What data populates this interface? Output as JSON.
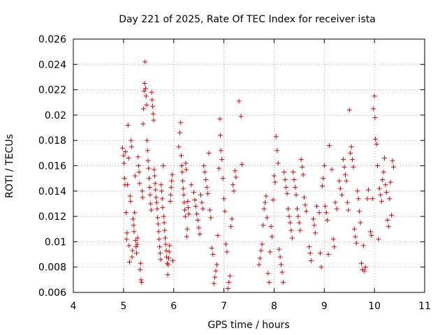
{
  "chart_data": {
    "type": "scatter",
    "title": "Day 221 of 2025, Rate Of TEC Index for receiver ista",
    "xlabel": "GPS time / hours",
    "ylabel": "ROTI / TECUs",
    "xlim": [
      4,
      11
    ],
    "ylim": [
      0.006,
      0.026
    ],
    "x_ticks": [
      "4",
      "5",
      "6",
      "7",
      "8",
      "9",
      "10",
      "11"
    ],
    "y_ticks": [
      "0.006",
      "0.008",
      "0.01",
      "0.012",
      "0.014",
      "0.016",
      "0.018",
      "0.02",
      "0.022",
      "0.024",
      "0.026"
    ],
    "grid": true,
    "marker": "+",
    "marker_color": "#e00000",
    "points": [
      [
        4.98,
        0.0174
      ],
      [
        5.0,
        0.0168
      ],
      [
        5.01,
        0.0162
      ],
      [
        5.02,
        0.015
      ],
      [
        5.03,
        0.0145
      ],
      [
        5.04,
        0.0171
      ],
      [
        5.05,
        0.0123
      ],
      [
        5.06,
        0.0102
      ],
      [
        5.07,
        0.0107
      ],
      [
        5.08,
        0.0145
      ],
      [
        5.09,
        0.0192
      ],
      [
        5.1,
        0.0166
      ],
      [
        5.11,
        0.0097
      ],
      [
        5.12,
        0.0084
      ],
      [
        5.13,
        0.0136
      ],
      [
        5.14,
        0.0132
      ],
      [
        5.15,
        0.018
      ],
      [
        5.16,
        0.0175
      ],
      [
        5.17,
        0.0088
      ],
      [
        5.18,
        0.0093
      ],
      [
        5.19,
        0.0118
      ],
      [
        5.2,
        0.0113
      ],
      [
        5.21,
        0.0108
      ],
      [
        5.22,
        0.0123
      ],
      [
        5.23,
        0.0152
      ],
      [
        5.24,
        0.0101
      ],
      [
        5.25,
        0.0096
      ],
      [
        5.26,
        0.0091
      ],
      [
        5.27,
        0.0098
      ],
      [
        5.28,
        0.0103
      ],
      [
        5.29,
        0.0167
      ],
      [
        5.3,
        0.016
      ],
      [
        5.31,
        0.0155
      ],
      [
        5.32,
        0.0146
      ],
      [
        5.33,
        0.0078
      ],
      [
        5.34,
        0.0083
      ],
      [
        5.35,
        0.007
      ],
      [
        5.36,
        0.0068
      ],
      [
        5.37,
        0.014
      ],
      [
        5.38,
        0.0135
      ],
      [
        5.39,
        0.0193
      ],
      [
        5.4,
        0.0205
      ],
      [
        5.41,
        0.0219
      ],
      [
        5.42,
        0.0225
      ],
      [
        5.43,
        0.0242
      ],
      [
        5.44,
        0.0221
      ],
      [
        5.45,
        0.0215
      ],
      [
        5.46,
        0.0208
      ],
      [
        5.47,
        0.018
      ],
      [
        5.48,
        0.0172
      ],
      [
        5.49,
        0.0164
      ],
      [
        5.5,
        0.0158
      ],
      [
        5.51,
        0.015
      ],
      [
        5.52,
        0.0143
      ],
      [
        5.53,
        0.0137
      ],
      [
        5.54,
        0.013
      ],
      [
        5.55,
        0.0125
      ],
      [
        5.56,
        0.0218
      ],
      [
        5.57,
        0.0212
      ],
      [
        5.58,
        0.0207
      ],
      [
        5.59,
        0.0201
      ],
      [
        5.6,
        0.0196
      ],
      [
        5.61,
        0.0157
      ],
      [
        5.62,
        0.0152
      ],
      [
        5.63,
        0.0146
      ],
      [
        5.64,
        0.0141
      ],
      [
        5.65,
        0.0135
      ],
      [
        5.66,
        0.0131
      ],
      [
        5.67,
        0.0126
      ],
      [
        5.68,
        0.0119
      ],
      [
        5.69,
        0.0114
      ],
      [
        5.7,
        0.0108
      ],
      [
        5.71,
        0.0102
      ],
      [
        5.72,
        0.0096
      ],
      [
        5.73,
        0.0091
      ],
      [
        5.74,
        0.0086
      ],
      [
        5.75,
        0.0145
      ],
      [
        5.76,
        0.014
      ],
      [
        5.77,
        0.0134
      ],
      [
        5.78,
        0.0127
      ],
      [
        5.79,
        0.016
      ],
      [
        5.8,
        0.012
      ],
      [
        5.81,
        0.0115
      ],
      [
        5.82,
        0.0109
      ],
      [
        5.83,
        0.0103
      ],
      [
        5.84,
        0.0098
      ],
      [
        5.85,
        0.0093
      ],
      [
        5.86,
        0.0088
      ],
      [
        5.87,
        0.0083
      ],
      [
        5.88,
        0.0074
      ],
      [
        5.89,
        0.0082
      ],
      [
        5.9,
        0.0087
      ],
      [
        5.91,
        0.0092
      ],
      [
        5.92,
        0.0097
      ],
      [
        5.93,
        0.0132
      ],
      [
        5.94,
        0.0137
      ],
      [
        5.95,
        0.0143
      ],
      [
        5.96,
        0.0148
      ],
      [
        5.97,
        0.0153
      ],
      [
        5.98,
        0.0085
      ],
      [
        6.1,
        0.0175
      ],
      [
        6.12,
        0.0186
      ],
      [
        6.14,
        0.0194
      ],
      [
        6.15,
        0.0168
      ],
      [
        6.16,
        0.016
      ],
      [
        6.17,
        0.0155
      ],
      [
        6.18,
        0.0148
      ],
      [
        6.19,
        0.0142
      ],
      [
        6.2,
        0.0137
      ],
      [
        6.21,
        0.0131
      ],
      [
        6.22,
        0.0125
      ],
      [
        6.23,
        0.012
      ],
      [
        6.24,
        0.0162
      ],
      [
        6.25,
        0.0157
      ],
      [
        6.26,
        0.0104
      ],
      [
        6.27,
        0.011
      ],
      [
        6.28,
        0.0132
      ],
      [
        6.29,
        0.0127
      ],
      [
        6.3,
        0.0122
      ],
      [
        6.35,
        0.0145
      ],
      [
        6.4,
        0.0139
      ],
      [
        6.42,
        0.0133
      ],
      [
        6.44,
        0.0128
      ],
      [
        6.46,
        0.0122
      ],
      [
        6.48,
        0.0117
      ],
      [
        6.5,
        0.0111
      ],
      [
        6.52,
        0.0106
      ],
      [
        6.54,
        0.0137
      ],
      [
        6.56,
        0.0131
      ],
      [
        6.58,
        0.0126
      ],
      [
        6.6,
        0.016
      ],
      [
        6.62,
        0.0155
      ],
      [
        6.64,
        0.0149
      ],
      [
        6.66,
        0.0143
      ],
      [
        6.68,
        0.0138
      ],
      [
        6.7,
        0.017
      ],
      [
        6.72,
        0.0125
      ],
      [
        6.74,
        0.0119
      ],
      [
        6.76,
        0.0095
      ],
      [
        6.78,
        0.009
      ],
      [
        6.8,
        0.0067
      ],
      [
        6.82,
        0.0072
      ],
      [
        6.84,
        0.0077
      ],
      [
        6.86,
        0.0082
      ],
      [
        6.88,
        0.0105
      ],
      [
        6.9,
        0.0158
      ],
      [
        6.92,
        0.0197
      ],
      [
        6.93,
        0.0184
      ],
      [
        6.94,
        0.0172
      ],
      [
        6.96,
        0.0165
      ],
      [
        6.98,
        0.015
      ],
      [
        7.0,
        0.0134
      ],
      [
        7.02,
        0.0124
      ],
      [
        7.04,
        0.0098
      ],
      [
        7.06,
        0.0092
      ],
      [
        7.08,
        0.0063
      ],
      [
        7.1,
        0.0068
      ],
      [
        7.12,
        0.0073
      ],
      [
        7.14,
        0.0112
      ],
      [
        7.16,
        0.0118
      ],
      [
        7.18,
        0.0145
      ],
      [
        7.2,
        0.014
      ],
      [
        7.22,
        0.0156
      ],
      [
        7.24,
        0.0151
      ],
      [
        7.3,
        0.0211
      ],
      [
        7.34,
        0.0199
      ],
      [
        7.36,
        0.0161
      ],
      [
        7.7,
        0.0082
      ],
      [
        7.72,
        0.0087
      ],
      [
        7.74,
        0.0093
      ],
      [
        7.76,
        0.0098
      ],
      [
        7.78,
        0.0113
      ],
      [
        7.8,
        0.0126
      ],
      [
        7.82,
        0.0131
      ],
      [
        7.84,
        0.0136
      ],
      [
        7.86,
        0.0119
      ],
      [
        7.88,
        0.0075
      ],
      [
        7.9,
        0.0068
      ],
      [
        7.92,
        0.0092
      ],
      [
        7.94,
        0.0112
      ],
      [
        7.96,
        0.0104
      ],
      [
        7.98,
        0.0133
      ],
      [
        8.0,
        0.0152
      ],
      [
        8.02,
        0.0147
      ],
      [
        8.04,
        0.0183
      ],
      [
        8.06,
        0.0172
      ],
      [
        8.08,
        0.0162
      ],
      [
        8.1,
        0.0094
      ],
      [
        8.12,
        0.0088
      ],
      [
        8.14,
        0.0082
      ],
      [
        8.16,
        0.0076
      ],
      [
        8.18,
        0.0068
      ],
      [
        8.2,
        0.0155
      ],
      [
        8.22,
        0.0149
      ],
      [
        8.24,
        0.0143
      ],
      [
        8.26,
        0.0138
      ],
      [
        8.28,
        0.0126
      ],
      [
        8.3,
        0.012
      ],
      [
        8.32,
        0.0115
      ],
      [
        8.34,
        0.0109
      ],
      [
        8.36,
        0.0103
      ],
      [
        8.38,
        0.0155
      ],
      [
        8.4,
        0.0149
      ],
      [
        8.42,
        0.0143
      ],
      [
        8.44,
        0.0137
      ],
      [
        8.46,
        0.0126
      ],
      [
        8.48,
        0.012
      ],
      [
        8.5,
        0.0115
      ],
      [
        8.52,
        0.0109
      ],
      [
        8.54,
        0.0165
      ],
      [
        8.56,
        0.0159
      ],
      [
        8.58,
        0.0153
      ],
      [
        8.6,
        0.0135
      ],
      [
        8.62,
        0.0129
      ],
      [
        8.64,
        0.0124
      ],
      [
        8.7,
        0.0096
      ],
      [
        8.72,
        0.0091
      ],
      [
        8.74,
        0.0085
      ],
      [
        8.78,
        0.0118
      ],
      [
        8.8,
        0.0113
      ],
      [
        8.82,
        0.0107
      ],
      [
        8.85,
        0.0128
      ],
      [
        8.9,
        0.0123
      ],
      [
        8.92,
        0.0091
      ],
      [
        8.94,
        0.008
      ],
      [
        8.96,
        0.0144
      ],
      [
        8.98,
        0.015
      ],
      [
        9.0,
        0.016
      ],
      [
        9.02,
        0.0128
      ],
      [
        9.04,
        0.0123
      ],
      [
        9.06,
        0.0117
      ],
      [
        9.08,
        0.009
      ],
      [
        9.1,
        0.0176
      ],
      [
        9.15,
        0.0157
      ],
      [
        9.18,
        0.0102
      ],
      [
        9.2,
        0.0096
      ],
      [
        9.22,
        0.0131
      ],
      [
        9.25,
        0.0126
      ],
      [
        9.3,
        0.0148
      ],
      [
        9.32,
        0.0142
      ],
      [
        9.35,
        0.0137
      ],
      [
        9.38,
        0.0165
      ],
      [
        9.4,
        0.0159
      ],
      [
        9.42,
        0.0153
      ],
      [
        9.44,
        0.0148
      ],
      [
        9.46,
        0.0131
      ],
      [
        9.48,
        0.0125
      ],
      [
        9.5,
        0.0204
      ],
      [
        9.52,
        0.017
      ],
      [
        9.54,
        0.0175
      ],
      [
        9.56,
        0.0165
      ],
      [
        9.58,
        0.0159
      ],
      [
        9.6,
        0.011
      ],
      [
        9.62,
        0.0104
      ],
      [
        9.64,
        0.0099
      ],
      [
        9.66,
        0.014
      ],
      [
        9.68,
        0.0134
      ],
      [
        9.7,
        0.0124
      ],
      [
        9.72,
        0.0115
      ],
      [
        9.74,
        0.0083
      ],
      [
        9.76,
        0.0078
      ],
      [
        9.78,
        0.0097
      ],
      [
        9.8,
        0.0077
      ],
      [
        9.82,
        0.008
      ],
      [
        9.86,
        0.0134
      ],
      [
        9.88,
        0.0141
      ],
      [
        9.92,
        0.0108
      ],
      [
        9.94,
        0.0105
      ],
      [
        9.96,
        0.0134
      ],
      [
        9.98,
        0.0205
      ],
      [
        10.0,
        0.0215
      ],
      [
        10.01,
        0.0198
      ],
      [
        10.02,
        0.0181
      ],
      [
        10.04,
        0.0177
      ],
      [
        10.06,
        0.016
      ],
      [
        10.08,
        0.0102
      ],
      [
        10.1,
        0.0142
      ],
      [
        10.12,
        0.0137
      ],
      [
        10.14,
        0.0132
      ],
      [
        10.16,
        0.0149
      ],
      [
        10.18,
        0.0155
      ],
      [
        10.2,
        0.0166
      ],
      [
        10.22,
        0.0145
      ],
      [
        10.24,
        0.0139
      ],
      [
        10.26,
        0.0117
      ],
      [
        10.28,
        0.0112
      ],
      [
        10.3,
        0.0134
      ],
      [
        10.32,
        0.0147
      ],
      [
        10.34,
        0.0121
      ],
      [
        10.36,
        0.0164
      ],
      [
        10.38,
        0.0159
      ]
    ]
  }
}
